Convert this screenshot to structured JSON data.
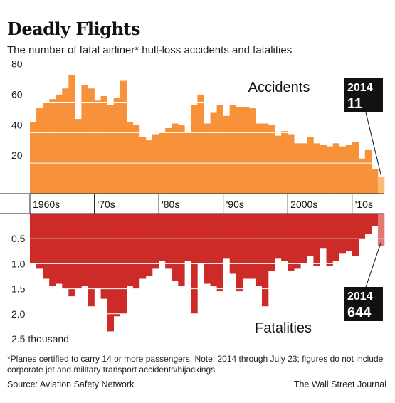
{
  "header": {
    "title": "Deadly Flights",
    "subtitle": "The number of fatal airliner* hull-loss accidents and fatalities"
  },
  "chart_data": [
    {
      "type": "bar",
      "direction": "up",
      "series_label": "Accidents",
      "x": [
        1960,
        1961,
        1962,
        1963,
        1964,
        1965,
        1966,
        1967,
        1968,
        1969,
        1970,
        1971,
        1972,
        1973,
        1974,
        1975,
        1976,
        1977,
        1978,
        1979,
        1980,
        1981,
        1982,
        1983,
        1984,
        1985,
        1986,
        1987,
        1988,
        1989,
        1990,
        1991,
        1992,
        1993,
        1994,
        1995,
        1996,
        1997,
        1998,
        1999,
        2000,
        2001,
        2002,
        2003,
        2004,
        2005,
        2006,
        2007,
        2008,
        2009,
        2010,
        2011,
        2012,
        2013,
        2014
      ],
      "values": [
        47,
        56,
        60,
        62,
        65,
        69,
        78,
        49,
        71,
        69,
        61,
        64,
        58,
        63,
        74,
        47,
        45,
        37,
        35,
        39,
        40,
        43,
        46,
        45,
        40,
        58,
        65,
        46,
        53,
        58,
        51,
        58,
        57,
        57,
        56,
        46,
        46,
        45,
        38,
        41,
        39,
        33,
        33,
        37,
        33,
        32,
        31,
        33,
        31,
        32,
        34,
        23,
        29,
        16,
        11
      ],
      "color": "#f7923a",
      "highlight_color": "#fbbb74",
      "ylim": [
        0,
        85
      ],
      "yticks": [
        20,
        40,
        60,
        80
      ],
      "grid": true,
      "xticks": [
        {
          "value": 1960,
          "label": "1960s"
        },
        {
          "value": 1970,
          "label": "'70s"
        },
        {
          "value": 1980,
          "label": "'80s"
        },
        {
          "value": 1990,
          "label": "'90s"
        },
        {
          "value": 2000,
          "label": "2000s"
        },
        {
          "value": 2010,
          "label": "'10s"
        }
      ],
      "annotation": {
        "label": "2014",
        "text": "11"
      }
    },
    {
      "type": "bar",
      "direction": "down",
      "series_label": "Fatalities",
      "x": [
        1960,
        1961,
        1962,
        1963,
        1964,
        1965,
        1966,
        1967,
        1968,
        1969,
        1970,
        1971,
        1972,
        1973,
        1974,
        1975,
        1976,
        1977,
        1978,
        1979,
        1980,
        1981,
        1982,
        1983,
        1984,
        1985,
        1986,
        1987,
        1988,
        1989,
        1990,
        1991,
        1992,
        1993,
        1994,
        1995,
        1996,
        1997,
        1998,
        1999,
        2000,
        2001,
        2002,
        2003,
        2004,
        2005,
        2006,
        2007,
        2008,
        2009,
        2010,
        2011,
        2012,
        2013,
        2014
      ],
      "values": [
        1.0,
        1.1,
        1.3,
        1.45,
        1.4,
        1.5,
        1.65,
        1.5,
        1.45,
        1.85,
        1.5,
        1.7,
        2.35,
        2.05,
        2.0,
        1.45,
        1.5,
        1.3,
        1.25,
        1.1,
        0.95,
        1.1,
        1.35,
        1.45,
        0.95,
        2.0,
        1.0,
        1.4,
        1.45,
        1.55,
        0.9,
        1.2,
        1.55,
        1.3,
        1.3,
        1.45,
        1.85,
        1.15,
        0.9,
        0.95,
        1.15,
        1.1,
        1.0,
        0.85,
        1.05,
        0.7,
        1.05,
        0.95,
        0.8,
        0.75,
        0.85,
        0.5,
        0.4,
        0.25,
        0.644
      ],
      "color": "#cc2b27",
      "highlight_color": "#e27a72",
      "ylim": [
        0,
        2.6
      ],
      "yticks": [
        0.5,
        {
          "value": 1.0,
          "label": "1.0"
        },
        1.5,
        {
          "value": 2.0,
          "label": "2.0"
        },
        {
          "value": 2.5,
          "label": "2.5 thousand"
        }
      ],
      "grid": true,
      "annotation": {
        "label": "2014",
        "text": "644"
      }
    }
  ],
  "footer": {
    "note": "*Planes certified to carry 14 or more passengers.  Note: 2014 through July 23; figures do not include corporate jet and military transport accidents/hijackings.",
    "source": "Source: Aviation Safety Network",
    "credit": "The Wall Street Journal"
  }
}
